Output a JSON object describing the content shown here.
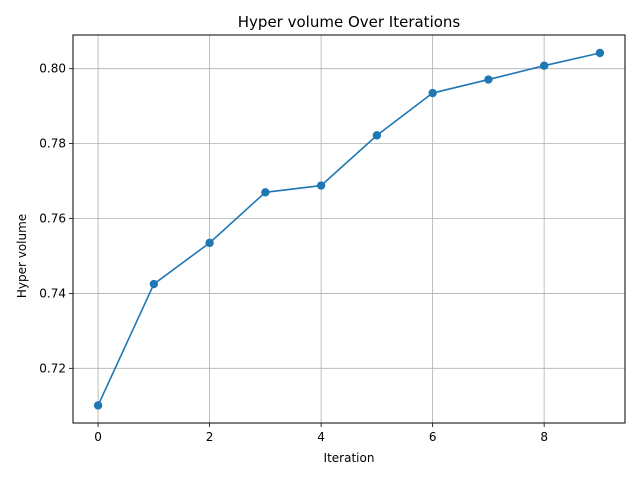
{
  "chart_data": {
    "type": "line",
    "title": "Hyper volume Over Iterations",
    "xlabel": "Iteration",
    "ylabel": "Hyper volume",
    "xlim": [
      -0.45,
      9.45
    ],
    "ylim": [
      0.7054,
      0.809
    ],
    "xticks": [
      0,
      2,
      4,
      6,
      8
    ],
    "yticks": [
      0.72,
      0.74,
      0.76,
      0.78,
      0.8
    ],
    "ytick_labels": [
      "0.72",
      "0.74",
      "0.76",
      "0.78",
      "0.80"
    ],
    "grid": true,
    "series": [
      {
        "color": "#1f77b4",
        "marker": "circle",
        "x": [
          0,
          1,
          2,
          3,
          4,
          5,
          6,
          7,
          8,
          9
        ],
        "y": [
          0.7101,
          0.7425,
          0.7535,
          0.767,
          0.7688,
          0.7822,
          0.7935,
          0.7971,
          0.8008,
          0.8042
        ]
      }
    ]
  }
}
